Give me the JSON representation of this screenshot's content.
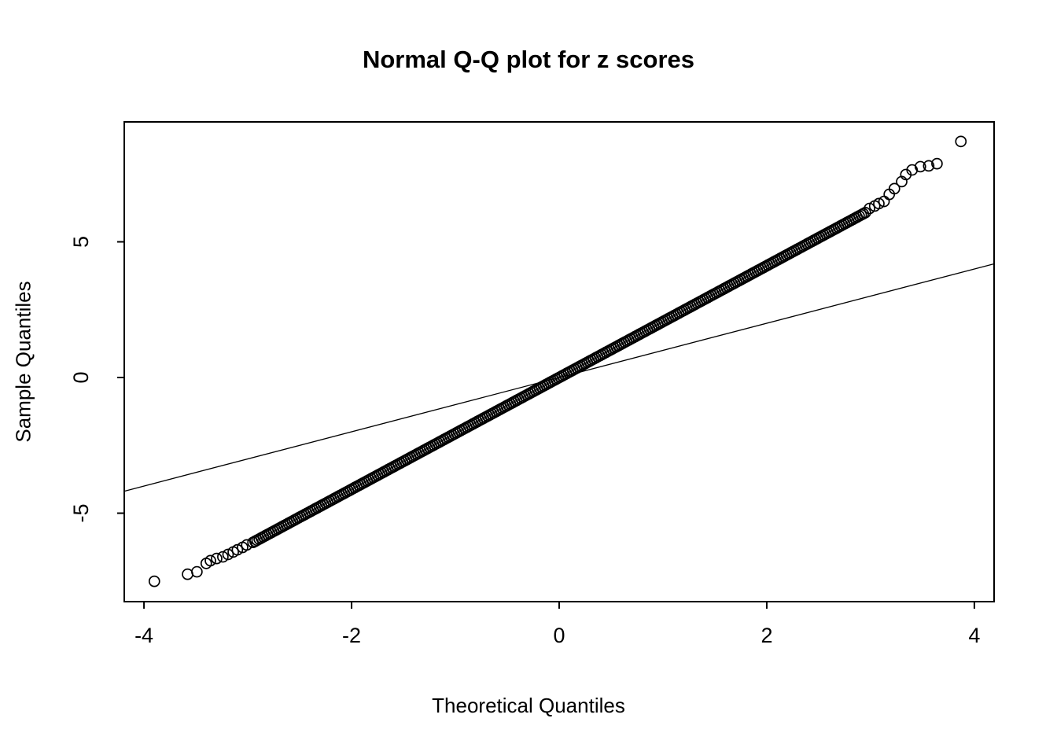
{
  "colors": {
    "foreground": "#000000",
    "background": "#ffffff"
  },
  "chart_data": {
    "type": "scatter",
    "subtype": "normal-qq-plot",
    "title": "Normal Q-Q plot for z scores",
    "xlabel": "Theoretical Quantiles",
    "ylabel": "Sample Quantiles",
    "x_ticks": [
      -4,
      -2,
      0,
      2,
      4
    ],
    "y_ticks": [
      -5,
      0,
      5
    ],
    "xlim": [
      -4.19,
      4.19
    ],
    "ylim": [
      -8.26,
      9.42
    ],
    "grid": false,
    "legend": false,
    "reference_line": {
      "slope": 1,
      "intercept": 0
    },
    "dense_body_generator": {
      "x_min": -2.95,
      "x_max": 2.96,
      "step": 0.02,
      "slope": 2.06,
      "intercept": 0
    },
    "lower_tail_points": [
      [
        -3.9,
        -7.51
      ],
      [
        -3.58,
        -7.25
      ],
      [
        -3.49,
        -7.16
      ],
      [
        -3.4,
        -6.85
      ],
      [
        -3.36,
        -6.75
      ],
      [
        -3.3,
        -6.67
      ],
      [
        -3.24,
        -6.61
      ],
      [
        -3.19,
        -6.52
      ],
      [
        -3.14,
        -6.43
      ],
      [
        -3.1,
        -6.35
      ],
      [
        -3.05,
        -6.26
      ],
      [
        -3.01,
        -6.17
      ]
    ],
    "upper_tail_points": [
      [
        2.99,
        6.23
      ],
      [
        3.04,
        6.32
      ],
      [
        3.08,
        6.41
      ],
      [
        3.13,
        6.49
      ],
      [
        3.18,
        6.75
      ],
      [
        3.23,
        6.96
      ],
      [
        3.3,
        7.22
      ],
      [
        3.34,
        7.48
      ],
      [
        3.4,
        7.65
      ],
      [
        3.48,
        7.77
      ],
      [
        3.56,
        7.8
      ],
      [
        3.64,
        7.88
      ],
      [
        3.87,
        8.7
      ]
    ]
  }
}
